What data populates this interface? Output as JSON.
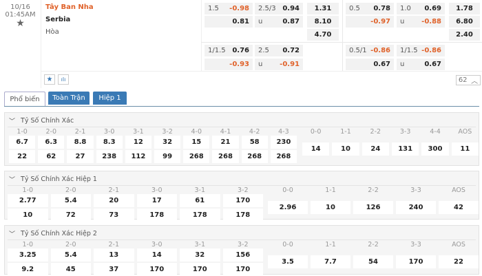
{
  "match": {
    "date": "10/16",
    "time": "01:45AM",
    "home": "Tây Ban Nha",
    "away": "Serbia",
    "draw": "Hòa",
    "more_count": "62"
  },
  "odds": {
    "group1": {
      "A": [
        {
          "label": "1.5",
          "value": "-0.98"
        },
        {
          "label": "",
          "value": "0.81"
        }
      ],
      "B": [
        {
          "label": "2.5/3",
          "value": "0.94"
        },
        {
          "label": "u",
          "value": "0.87"
        }
      ],
      "C": [
        "1.31",
        "8.10",
        "4.70"
      ],
      "D": [
        {
          "label": "0.5",
          "value": "0.78"
        },
        {
          "label": "",
          "value": "-0.97"
        }
      ],
      "E": [
        {
          "label": "1.0",
          "value": "0.69"
        },
        {
          "label": "u",
          "value": "-0.88"
        }
      ],
      "F": [
        "1.78",
        "6.80",
        "2.40"
      ]
    },
    "group2": {
      "A": [
        {
          "label": "1/1.5",
          "value": "0.76"
        },
        {
          "label": "",
          "value": "-0.93"
        }
      ],
      "B": [
        {
          "label": "2.5",
          "value": "0.72"
        },
        {
          "label": "u",
          "value": "-0.91"
        }
      ],
      "D": [
        {
          "label": "0.5/1",
          "value": "-0.86"
        },
        {
          "label": "",
          "value": "0.67"
        }
      ],
      "E": [
        {
          "label": "1/1.5",
          "value": "-0.86"
        },
        {
          "label": "u",
          "value": "0.67"
        }
      ]
    }
  },
  "colors": {
    "negative": "#e0622a",
    "accent": "#3a7ab5"
  },
  "tabs": [
    {
      "label": "Phổ biến",
      "active": true
    },
    {
      "label": "Toàn Trận"
    },
    {
      "label": "Hiệp 1"
    }
  ],
  "sections": [
    {
      "title": "Tỷ Số Chính Xác",
      "left": [
        {
          "score": "1-0",
          "odds": [
            "6.7",
            "22"
          ]
        },
        {
          "score": "2-0",
          "odds": [
            "6.3",
            "62"
          ]
        },
        {
          "score": "2-1",
          "odds": [
            "8.8",
            "27"
          ]
        },
        {
          "score": "3-0",
          "odds": [
            "8.3",
            "238"
          ]
        },
        {
          "score": "3-1",
          "odds": [
            "12",
            "112"
          ]
        },
        {
          "score": "3-2",
          "odds": [
            "32",
            "99"
          ]
        },
        {
          "score": "4-0",
          "odds": [
            "15",
            "268"
          ]
        },
        {
          "score": "4-1",
          "odds": [
            "21",
            "268"
          ]
        },
        {
          "score": "4-2",
          "odds": [
            "58",
            "268"
          ]
        },
        {
          "score": "4-3",
          "odds": [
            "230",
            "268"
          ]
        }
      ],
      "right": [
        {
          "score": "0-0",
          "odds": "14"
        },
        {
          "score": "1-1",
          "odds": "10"
        },
        {
          "score": "2-2",
          "odds": "24"
        },
        {
          "score": "3-3",
          "odds": "131"
        },
        {
          "score": "4-4",
          "odds": "300"
        },
        {
          "score": "AOS",
          "odds": "11"
        }
      ]
    },
    {
      "title": "Tỷ Số Chính Xác Hiệp 1",
      "left": [
        {
          "score": "1-0",
          "odds": [
            "2.77",
            "10"
          ]
        },
        {
          "score": "2-0",
          "odds": [
            "5.4",
            "72"
          ]
        },
        {
          "score": "2-1",
          "odds": [
            "20",
            "73"
          ]
        },
        {
          "score": "3-0",
          "odds": [
            "17",
            "178"
          ]
        },
        {
          "score": "3-1",
          "odds": [
            "61",
            "178"
          ]
        },
        {
          "score": "3-2",
          "odds": [
            "170",
            "178"
          ]
        }
      ],
      "right": [
        {
          "score": "0-0",
          "odds": "2.96"
        },
        {
          "score": "1-1",
          "odds": "10"
        },
        {
          "score": "2-2",
          "odds": "126"
        },
        {
          "score": "3-3",
          "odds": "240"
        },
        {
          "score": "AOS",
          "odds": "42"
        }
      ]
    },
    {
      "title": "Tỷ Số Chính Xác Hiệp 2",
      "left": [
        {
          "score": "1-0",
          "odds": [
            "3.25",
            "9.2"
          ]
        },
        {
          "score": "2-0",
          "odds": [
            "5.4",
            "45"
          ]
        },
        {
          "score": "2-1",
          "odds": [
            "13",
            "37"
          ]
        },
        {
          "score": "3-0",
          "odds": [
            "14",
            "170"
          ]
        },
        {
          "score": "3-1",
          "odds": [
            "32",
            "170"
          ]
        },
        {
          "score": "3-2",
          "odds": [
            "156",
            "170"
          ]
        }
      ],
      "right": [
        {
          "score": "0-0",
          "odds": "3.5"
        },
        {
          "score": "1-1",
          "odds": "7.7"
        },
        {
          "score": "2-2",
          "odds": "54"
        },
        {
          "score": "3-3",
          "odds": "170"
        },
        {
          "score": "AOS",
          "odds": "22"
        }
      ]
    }
  ]
}
